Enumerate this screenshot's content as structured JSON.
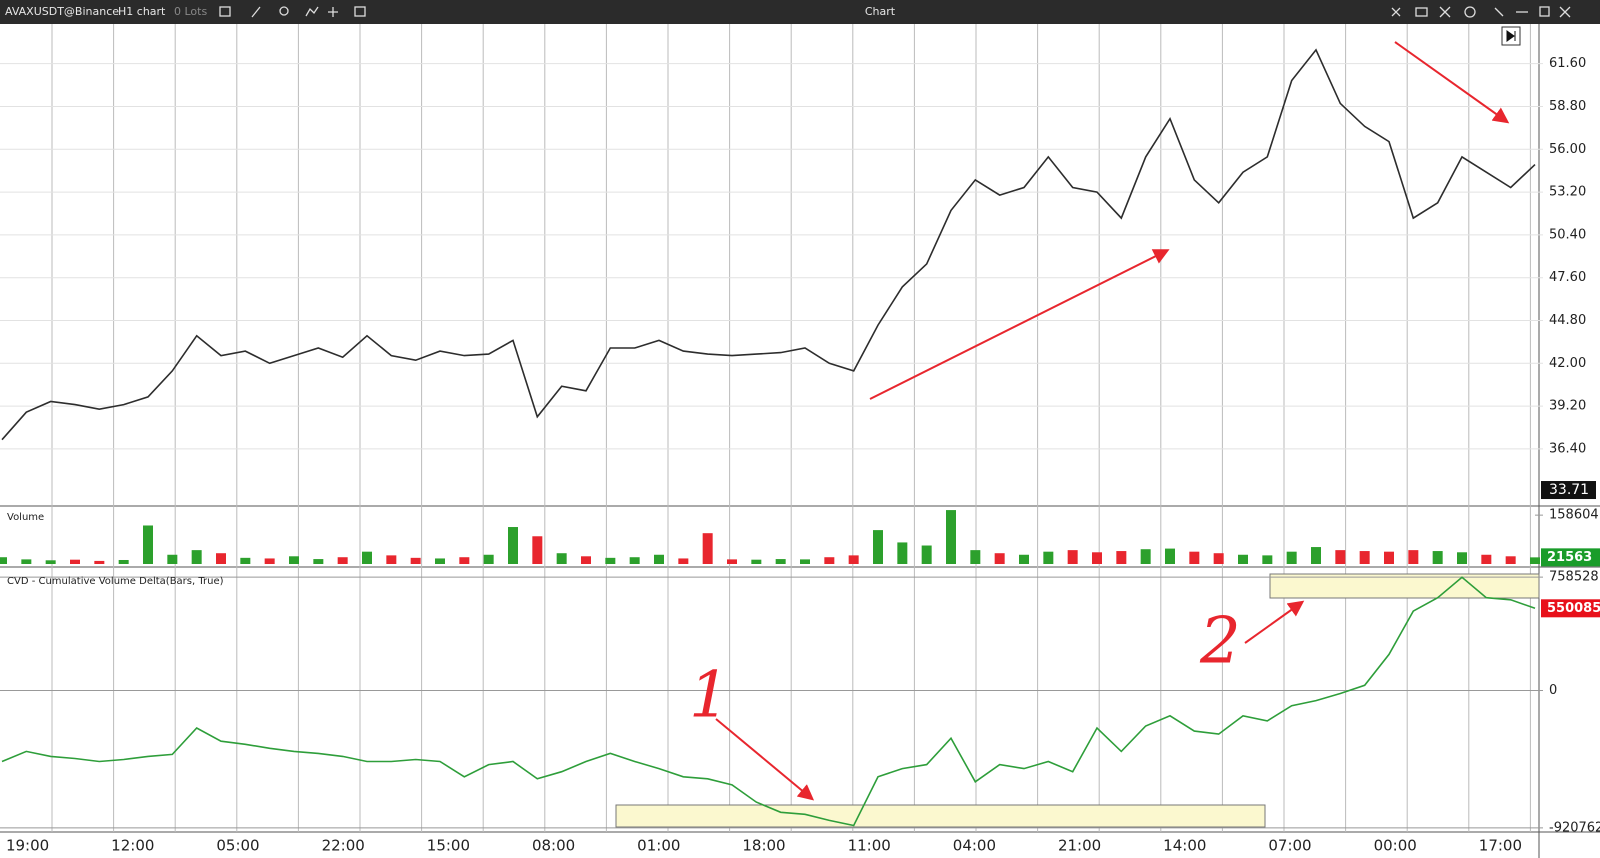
{
  "toolbar": {
    "symbol": "AVAXUSDT@Binance",
    "timeframe": "H1 chart",
    "lots": "0 Lots",
    "title": "Chart"
  },
  "chart_data": [
    {
      "type": "line",
      "color": "#2d2d2d",
      "values": [
        37.0,
        38.8,
        39.5,
        39.3,
        39.0,
        39.3,
        39.8,
        41.5,
        43.8,
        42.5,
        42.8,
        42.0,
        42.5,
        43.0,
        42.4,
        43.8,
        42.5,
        42.2,
        42.8,
        42.5,
        42.6,
        43.5,
        38.5,
        40.5,
        40.2,
        43.0,
        43.0,
        43.5,
        42.8,
        42.6,
        42.5,
        42.6,
        42.7,
        43.0,
        42.0,
        41.5,
        44.5,
        47.0,
        48.5,
        52.0,
        54.0,
        53.0,
        53.5,
        55.5,
        53.5,
        53.2,
        51.5,
        55.5,
        58.0,
        54.0,
        52.5,
        54.5,
        55.5,
        60.5,
        62.5,
        59.0,
        57.5,
        56.5,
        51.5,
        52.5,
        55.5,
        54.5,
        53.5,
        55.0
      ],
      "ylim": [
        32.73,
        64.13
      ],
      "yticks": [
        {
          "value": 61.6,
          "label": "61.60"
        },
        {
          "value": 58.8,
          "label": "58.80"
        },
        {
          "value": 56,
          "label": "56.00"
        },
        {
          "value": 53.2,
          "label": "53.20"
        },
        {
          "value": 50.4,
          "label": "50.40"
        },
        {
          "value": 47.6,
          "label": "47.60"
        },
        {
          "value": 44.8,
          "label": "44.80"
        },
        {
          "value": 42,
          "label": "42.00"
        },
        {
          "value": 39.2,
          "label": "39.20"
        },
        {
          "value": 36.4,
          "label": "36.40"
        }
      ],
      "grid": true,
      "marker": 33.71
    },
    {
      "type": "bar",
      "title": "Volume",
      "up_color": "#2ca02c",
      "down_color": "#e8262e",
      "values": [
        22000,
        15000,
        12000,
        14000,
        10000,
        13000,
        125000,
        30000,
        45000,
        35000,
        20000,
        18000,
        25000,
        16000,
        22000,
        40000,
        28000,
        20000,
        18000,
        22000,
        30000,
        120000,
        90000,
        35000,
        25000,
        20000,
        22000,
        30000,
        18000,
        100000,
        15000,
        14000,
        16000,
        15000,
        22000,
        28000,
        110000,
        70000,
        60000,
        175000,
        45000,
        35000,
        30000,
        40000,
        45000,
        38000,
        42000,
        48000,
        50000,
        40000,
        35000,
        30000,
        28000,
        40000,
        55000,
        45000,
        42000,
        40000,
        45000,
        42000,
        38000,
        30000,
        25000,
        21563
      ],
      "ylim": [
        0,
        185000
      ],
      "yticks": [
        158604
      ]
    },
    {
      "type": "line",
      "title": "CVD - Cumulative Volume Delta(Bars, True)",
      "color": "#2e9e3a",
      "values": [
        -476000,
        -408000,
        -442000,
        -455600,
        -476000,
        -462400,
        -442000,
        -428400,
        -251600,
        -340000,
        -360400,
        -387600,
        -408000,
        -421600,
        -442000,
        -476000,
        -476000,
        -462400,
        -476000,
        -578000,
        -496400,
        -476000,
        -591600,
        -544000,
        -476000,
        -421600,
        -476000,
        -523600,
        -578000,
        -591600,
        -632400,
        -748000,
        -816000,
        -829600,
        -870400,
        -904400,
        -578000,
        -523600,
        -496400,
        -319600,
        -612000,
        -496400,
        -523600,
        -476000,
        -544000,
        -251600,
        -408000,
        -238000,
        -170000,
        -272000,
        -292400,
        -170000,
        -204000,
        -102000,
        -68000,
        -20400,
        34500,
        241500,
        531300,
        621000,
        758000,
        621000,
        607200,
        550085
      ],
      "ylim": [
        -948000,
        820000
      ],
      "yticks": [
        758528,
        0,
        -920762
      ]
    }
  ],
  "time_axis": [
    "19:00",
    "12:00",
    "05:00",
    "22:00",
    "15:00",
    "08:00",
    "01:00",
    "18:00",
    "11:00",
    "04:00",
    "21:00",
    "14:00",
    "07:00",
    "00:00",
    "17:00"
  ],
  "annotations": [
    "1",
    "2"
  ]
}
